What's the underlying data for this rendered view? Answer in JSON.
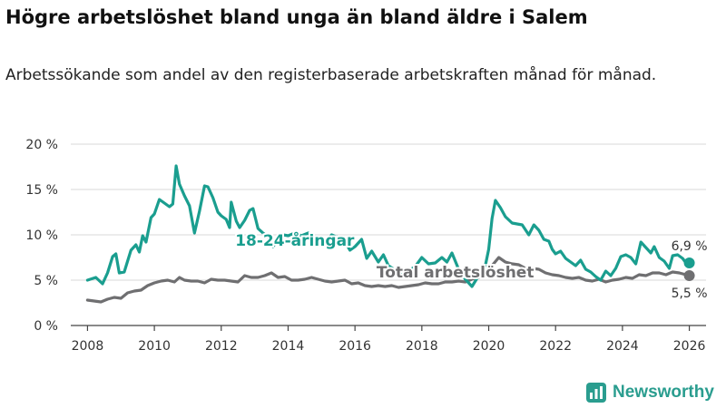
{
  "header": {
    "title": "Högre arbetslöshet bland unga än bland äldre i Salem",
    "subtitle": "Arbetssökande som andel av den registerbaserade arbetskraften månad för månad."
  },
  "brand": {
    "name": "Newsworthy",
    "logo_icon": "bar-chart-icon"
  },
  "colors": {
    "youth": "#1a9e8f",
    "total": "#6f6f71",
    "grid": "#d9d9d9",
    "axis": "#444444",
    "brand": "#2a9d8f"
  },
  "chart_data": {
    "type": "line",
    "title": "Högre arbetslöshet bland unga än bland äldre i Salem",
    "xlabel": "",
    "ylabel": "",
    "xlim": [
      2007.5,
      2026.5
    ],
    "ylim": [
      0,
      20
    ],
    "yticks": [
      0,
      5,
      10,
      15,
      20
    ],
    "ytick_labels": [
      "0 %",
      "5 %",
      "10 %",
      "15 %",
      "20 %"
    ],
    "xticks": [
      2008,
      2010,
      2012,
      2014,
      2016,
      2018,
      2020,
      2022,
      2024,
      2026
    ],
    "xtick_labels": [
      "2008",
      "2010",
      "2012",
      "2014",
      "2016",
      "2018",
      "2020",
      "2022",
      "2024",
      "2026"
    ],
    "grid": true,
    "series": [
      {
        "name": "18-24-åringar",
        "color": "#1a9e8f",
        "end_label": "6,9 %",
        "points": [
          [
            2008.0,
            5.0
          ],
          [
            2008.25,
            5.3
          ],
          [
            2008.45,
            4.6
          ],
          [
            2008.6,
            5.8
          ],
          [
            2008.75,
            7.6
          ],
          [
            2008.85,
            7.9
          ],
          [
            2008.95,
            5.8
          ],
          [
            2009.1,
            5.9
          ],
          [
            2009.3,
            8.3
          ],
          [
            2009.45,
            8.9
          ],
          [
            2009.55,
            8.1
          ],
          [
            2009.65,
            9.9
          ],
          [
            2009.75,
            9.2
          ],
          [
            2009.9,
            11.9
          ],
          [
            2010.0,
            12.3
          ],
          [
            2010.15,
            13.9
          ],
          [
            2010.3,
            13.5
          ],
          [
            2010.45,
            13.1
          ],
          [
            2010.55,
            13.4
          ],
          [
            2010.65,
            17.6
          ],
          [
            2010.75,
            15.6
          ],
          [
            2010.9,
            14.3
          ],
          [
            2011.05,
            13.2
          ],
          [
            2011.2,
            10.2
          ],
          [
            2011.35,
            12.6
          ],
          [
            2011.5,
            15.4
          ],
          [
            2011.6,
            15.3
          ],
          [
            2011.75,
            14.1
          ],
          [
            2011.9,
            12.5
          ],
          [
            2012.0,
            12.1
          ],
          [
            2012.15,
            11.7
          ],
          [
            2012.25,
            10.8
          ],
          [
            2012.3,
            13.6
          ],
          [
            2012.45,
            11.5
          ],
          [
            2012.55,
            10.8
          ],
          [
            2012.7,
            11.6
          ],
          [
            2012.85,
            12.7
          ],
          [
            2012.95,
            12.9
          ],
          [
            2013.1,
            10.7
          ],
          [
            2013.25,
            10.2
          ],
          [
            2013.4,
            9.8
          ],
          [
            2013.55,
            8.7
          ],
          [
            2013.7,
            9.5
          ],
          [
            2013.85,
            10.0
          ],
          [
            2014.0,
            9.9
          ],
          [
            2014.2,
            10.2
          ],
          [
            2014.4,
            9.9
          ],
          [
            2014.6,
            10.2
          ],
          [
            2014.8,
            9.3
          ],
          [
            2015.0,
            8.8
          ],
          [
            2015.15,
            9.3
          ],
          [
            2015.3,
            10.0
          ],
          [
            2015.5,
            9.7
          ],
          [
            2015.7,
            9.3
          ],
          [
            2015.85,
            8.3
          ],
          [
            2016.0,
            8.7
          ],
          [
            2016.2,
            9.5
          ],
          [
            2016.35,
            7.4
          ],
          [
            2016.5,
            8.2
          ],
          [
            2016.7,
            7.0
          ],
          [
            2016.85,
            7.8
          ],
          [
            2017.0,
            6.6
          ],
          [
            2017.2,
            6.1
          ],
          [
            2017.4,
            5.6
          ],
          [
            2017.6,
            6.0
          ],
          [
            2017.8,
            6.5
          ],
          [
            2018.0,
            7.5
          ],
          [
            2018.2,
            6.8
          ],
          [
            2018.4,
            6.9
          ],
          [
            2018.6,
            7.5
          ],
          [
            2018.75,
            7.0
          ],
          [
            2018.9,
            8.0
          ],
          [
            2019.1,
            6.2
          ],
          [
            2019.3,
            5.1
          ],
          [
            2019.5,
            4.3
          ],
          [
            2019.7,
            5.5
          ],
          [
            2019.9,
            6.6
          ],
          [
            2020.0,
            8.4
          ],
          [
            2020.1,
            11.8
          ],
          [
            2020.2,
            13.8
          ],
          [
            2020.35,
            13.0
          ],
          [
            2020.5,
            12.0
          ],
          [
            2020.7,
            11.3
          ],
          [
            2020.85,
            11.2
          ],
          [
            2021.0,
            11.1
          ],
          [
            2021.2,
            10.0
          ],
          [
            2021.35,
            11.1
          ],
          [
            2021.5,
            10.5
          ],
          [
            2021.65,
            9.5
          ],
          [
            2021.8,
            9.3
          ],
          [
            2021.9,
            8.4
          ],
          [
            2022.0,
            7.9
          ],
          [
            2022.15,
            8.2
          ],
          [
            2022.3,
            7.4
          ],
          [
            2022.45,
            7.0
          ],
          [
            2022.6,
            6.6
          ],
          [
            2022.75,
            7.2
          ],
          [
            2022.9,
            6.2
          ],
          [
            2023.05,
            5.9
          ],
          [
            2023.2,
            5.4
          ],
          [
            2023.35,
            5.0
          ],
          [
            2023.5,
            6.0
          ],
          [
            2023.65,
            5.5
          ],
          [
            2023.8,
            6.3
          ],
          [
            2023.95,
            7.6
          ],
          [
            2024.1,
            7.8
          ],
          [
            2024.25,
            7.5
          ],
          [
            2024.4,
            6.8
          ],
          [
            2024.55,
            9.2
          ],
          [
            2024.7,
            8.6
          ],
          [
            2024.85,
            8.0
          ],
          [
            2024.95,
            8.7
          ],
          [
            2025.1,
            7.5
          ],
          [
            2025.25,
            7.1
          ],
          [
            2025.4,
            6.3
          ],
          [
            2025.5,
            7.7
          ],
          [
            2025.65,
            7.8
          ],
          [
            2025.8,
            7.4
          ],
          [
            2025.9,
            6.9
          ],
          [
            2026.0,
            6.9
          ]
        ]
      },
      {
        "name": "Total arbetslöshet",
        "color": "#6f6f71",
        "end_label": "5,5 %",
        "points": [
          [
            2008.0,
            2.8
          ],
          [
            2008.2,
            2.7
          ],
          [
            2008.4,
            2.6
          ],
          [
            2008.6,
            2.9
          ],
          [
            2008.8,
            3.1
          ],
          [
            2009.0,
            3.0
          ],
          [
            2009.2,
            3.6
          ],
          [
            2009.4,
            3.8
          ],
          [
            2009.6,
            3.9
          ],
          [
            2009.8,
            4.4
          ],
          [
            2010.0,
            4.7
          ],
          [
            2010.2,
            4.9
          ],
          [
            2010.4,
            5.0
          ],
          [
            2010.6,
            4.8
          ],
          [
            2010.75,
            5.3
          ],
          [
            2010.9,
            5.0
          ],
          [
            2011.1,
            4.9
          ],
          [
            2011.3,
            4.9
          ],
          [
            2011.5,
            4.7
          ],
          [
            2011.7,
            5.1
          ],
          [
            2011.9,
            5.0
          ],
          [
            2012.1,
            5.0
          ],
          [
            2012.3,
            4.9
          ],
          [
            2012.5,
            4.8
          ],
          [
            2012.7,
            5.5
          ],
          [
            2012.9,
            5.3
          ],
          [
            2013.1,
            5.3
          ],
          [
            2013.3,
            5.5
          ],
          [
            2013.5,
            5.8
          ],
          [
            2013.7,
            5.3
          ],
          [
            2013.9,
            5.4
          ],
          [
            2014.1,
            5.0
          ],
          [
            2014.3,
            5.0
          ],
          [
            2014.5,
            5.1
          ],
          [
            2014.7,
            5.3
          ],
          [
            2014.9,
            5.1
          ],
          [
            2015.1,
            4.9
          ],
          [
            2015.3,
            4.8
          ],
          [
            2015.5,
            4.9
          ],
          [
            2015.7,
            5.0
          ],
          [
            2015.9,
            4.6
          ],
          [
            2016.1,
            4.7
          ],
          [
            2016.3,
            4.4
          ],
          [
            2016.5,
            4.3
          ],
          [
            2016.7,
            4.4
          ],
          [
            2016.9,
            4.3
          ],
          [
            2017.1,
            4.4
          ],
          [
            2017.3,
            4.2
          ],
          [
            2017.5,
            4.3
          ],
          [
            2017.7,
            4.4
          ],
          [
            2017.9,
            4.5
          ],
          [
            2018.1,
            4.7
          ],
          [
            2018.3,
            4.6
          ],
          [
            2018.5,
            4.6
          ],
          [
            2018.7,
            4.8
          ],
          [
            2018.9,
            4.8
          ],
          [
            2019.1,
            4.9
          ],
          [
            2019.3,
            4.8
          ],
          [
            2019.5,
            5.1
          ],
          [
            2019.7,
            5.3
          ],
          [
            2019.9,
            5.5
          ],
          [
            2020.1,
            6.6
          ],
          [
            2020.3,
            7.5
          ],
          [
            2020.5,
            7.0
          ],
          [
            2020.7,
            6.8
          ],
          [
            2020.9,
            6.7
          ],
          [
            2021.1,
            6.3
          ],
          [
            2021.3,
            6.3
          ],
          [
            2021.5,
            6.2
          ],
          [
            2021.7,
            5.8
          ],
          [
            2021.9,
            5.6
          ],
          [
            2022.1,
            5.5
          ],
          [
            2022.3,
            5.3
          ],
          [
            2022.5,
            5.2
          ],
          [
            2022.7,
            5.3
          ],
          [
            2022.9,
            5.0
          ],
          [
            2023.1,
            4.9
          ],
          [
            2023.3,
            5.1
          ],
          [
            2023.5,
            4.8
          ],
          [
            2023.7,
            5.0
          ],
          [
            2023.9,
            5.1
          ],
          [
            2024.1,
            5.3
          ],
          [
            2024.3,
            5.2
          ],
          [
            2024.5,
            5.6
          ],
          [
            2024.7,
            5.5
          ],
          [
            2024.9,
            5.8
          ],
          [
            2025.1,
            5.8
          ],
          [
            2025.3,
            5.6
          ],
          [
            2025.5,
            5.9
          ],
          [
            2025.7,
            5.8
          ],
          [
            2025.9,
            5.6
          ],
          [
            2026.0,
            5.5
          ]
        ]
      }
    ],
    "annotations": [
      {
        "text": "18-24-åringar",
        "x": 2014.2,
        "y": 8.8,
        "series": "18-24-åringar"
      },
      {
        "text": "Total arbetslöshet",
        "x": 2019.0,
        "y": 5.3,
        "series": "Total arbetslöshet"
      }
    ]
  }
}
